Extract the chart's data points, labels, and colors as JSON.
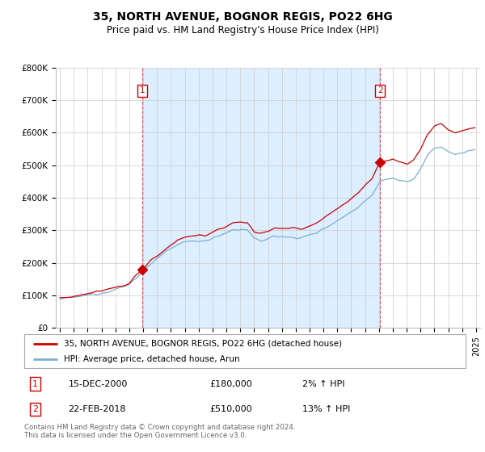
{
  "title": "35, NORTH AVENUE, BOGNOR REGIS, PO22 6HG",
  "subtitle": "Price paid vs. HM Land Registry's House Price Index (HPI)",
  "ylim": [
    0,
    800000
  ],
  "yticks": [
    0,
    100000,
    200000,
    300000,
    400000,
    500000,
    600000,
    700000,
    800000
  ],
  "ytick_labels": [
    "£0",
    "£100K",
    "£200K",
    "£300K",
    "£400K",
    "£500K",
    "£600K",
    "£700K",
    "£800K"
  ],
  "line1_color": "#cc0000",
  "line2_color": "#7aafd4",
  "shade_color": "#ddeeff",
  "sale1_x": 2000.958,
  "sale1_price": 180000,
  "sale2_x": 2018.083,
  "sale2_price": 510000,
  "legend1": "35, NORTH AVENUE, BOGNOR REGIS, PO22 6HG (detached house)",
  "legend2": "HPI: Average price, detached house, Arun",
  "table_row1": [
    "1",
    "15-DEC-2000",
    "£180,000",
    "2% ↑ HPI"
  ],
  "table_row2": [
    "2",
    "22-FEB-2018",
    "£510,000",
    "13% ↑ HPI"
  ],
  "footnote": "Contains HM Land Registry data © Crown copyright and database right 2024.\nThis data is licensed under the Open Government Licence v3.0.",
  "background_color": "#ffffff",
  "grid_color": "#cccccc",
  "xmin": 1994.7,
  "xmax": 2025.3
}
